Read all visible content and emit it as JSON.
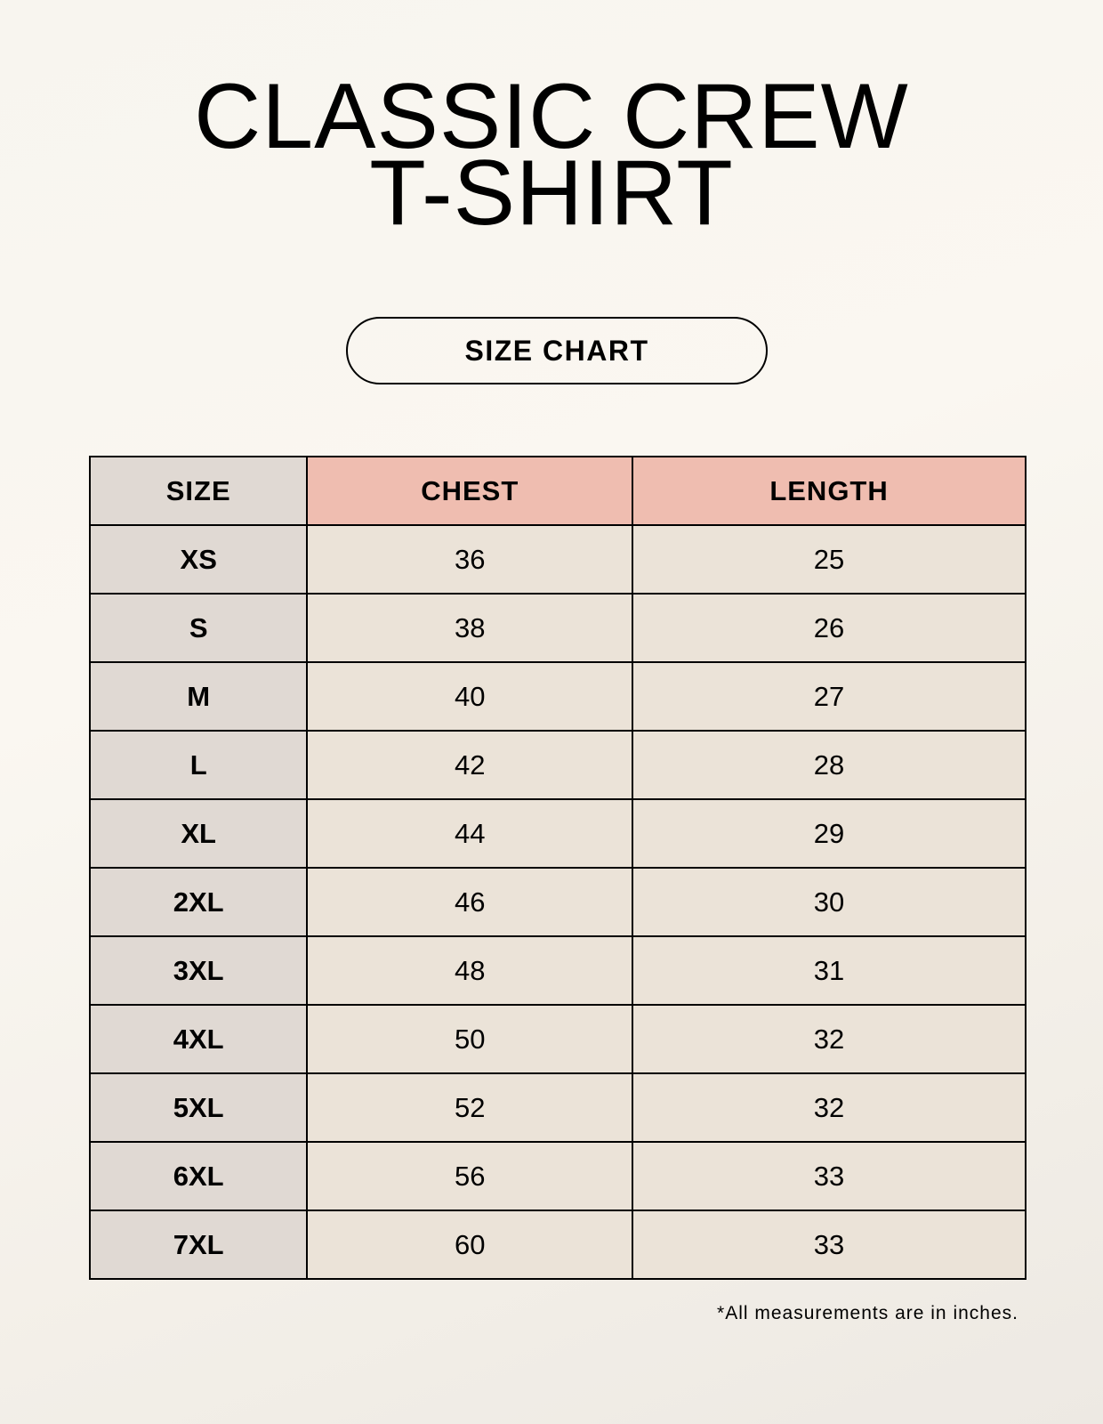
{
  "title": {
    "line1": "CLASSIC CREW",
    "line2": "T-SHIRT"
  },
  "badge": "SIZE CHART",
  "table": {
    "headers": [
      "SIZE",
      "CHEST",
      "LENGTH"
    ],
    "rows": [
      [
        "XS",
        "36",
        "25"
      ],
      [
        "S",
        "38",
        "26"
      ],
      [
        "M",
        "40",
        "27"
      ],
      [
        "L",
        "42",
        "28"
      ],
      [
        "XL",
        "44",
        "29"
      ],
      [
        "2XL",
        "46",
        "30"
      ],
      [
        "3XL",
        "48",
        "31"
      ],
      [
        "4XL",
        "50",
        "32"
      ],
      [
        "5XL",
        "52",
        "32"
      ],
      [
        "6XL",
        "56",
        "33"
      ],
      [
        "7XL",
        "60",
        "33"
      ]
    ]
  },
  "footnote": "*All measurements are in inches.",
  "colors": {
    "size_column": "#e0d9d3",
    "header_accent": "#efbdb0",
    "value_cells": "#ebe3d8",
    "background": "#f9f6f0"
  }
}
